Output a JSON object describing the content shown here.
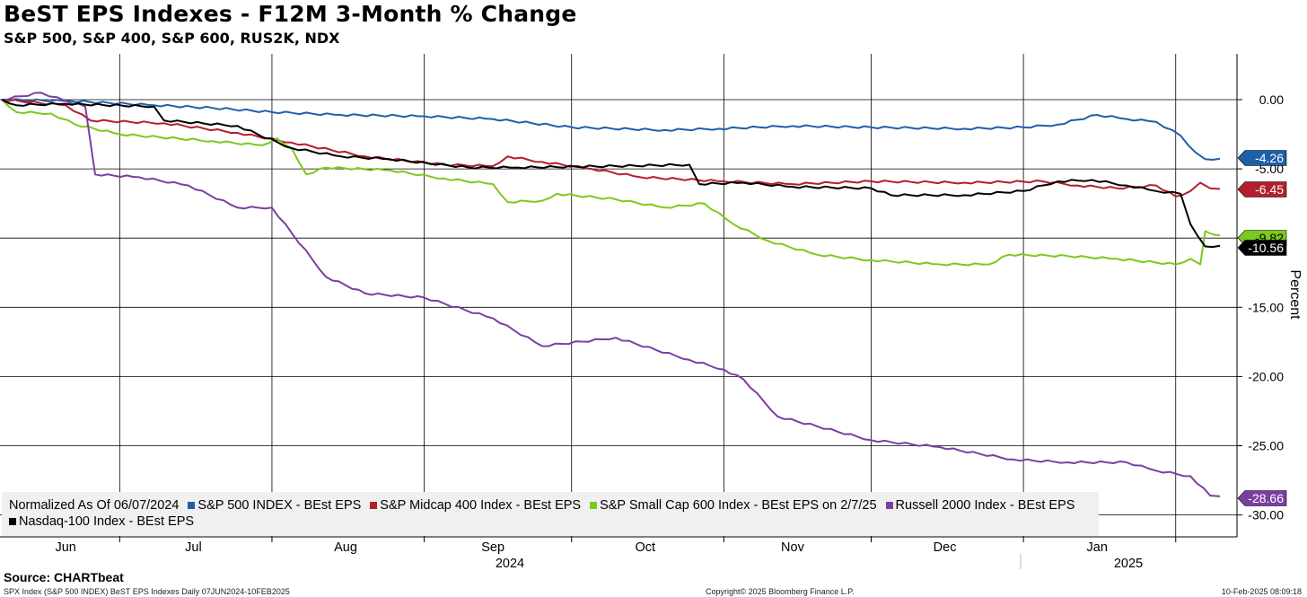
{
  "title": "BeST EPS Indexes - F12M 3-Month % Change",
  "subtitle": "S&P 500, S&P 400, S&P 600, RUS2K, NDX",
  "legend_prefix": "Normalized As Of 06/07/2024",
  "source": "Source: CHARTbeat",
  "footer": {
    "left": "SPX Index (S&P 500 INDEX) BeST EPS Indexes  Daily 07JUN2024-10FEB2025",
    "center": "Copyright© 2025 Bloomberg Finance L.P.",
    "right": "10-Feb-2025 08:09:18"
  },
  "chart_data": {
    "type": "line",
    "title": "BeST EPS Indexes - F12M 3-Month % Change",
    "subtitle": "S&P 500, S&P 400, S&P 600, RUS2K, NDX",
    "ylabel": "Percent",
    "ylim": [
      -30,
      2.5
    ],
    "yticks": [
      "0.00",
      "-5.00",
      "-10.00",
      "-15.00",
      "-20.00",
      "-25.00",
      "-30.00"
    ],
    "grid": true,
    "legend_position": "bottom-left",
    "x_months": [
      "Jun",
      "Jul",
      "Aug",
      "Sep",
      "Oct",
      "Nov",
      "Dec",
      "Jan"
    ],
    "x_years": [
      "2024",
      "2025"
    ],
    "date_range": [
      "2024-06-07",
      "2025-02-10"
    ],
    "series": [
      {
        "name": "S&P 500 INDEX - BEst EPS",
        "color": "#1f5fa8",
        "last_value": "-4.26",
        "points": [
          [
            "2024-06-07",
            0
          ],
          [
            "2024-06-21",
            -0.1
          ],
          [
            "2024-07-08",
            -0.4
          ],
          [
            "2024-07-20",
            -0.6
          ],
          [
            "2024-08-01",
            -0.9
          ],
          [
            "2024-08-15",
            -1.1
          ],
          [
            "2024-09-01",
            -1.2
          ],
          [
            "2024-09-15",
            -1.4
          ],
          [
            "2024-10-01",
            -2.0
          ],
          [
            "2024-10-20",
            -2.2
          ],
          [
            "2024-10-31",
            -2.1
          ],
          [
            "2024-11-15",
            -1.9
          ],
          [
            "2024-12-01",
            -2.0
          ],
          [
            "2024-12-20",
            -2.1
          ],
          [
            "2025-01-01",
            -2.0
          ],
          [
            "2025-01-08",
            -1.8
          ],
          [
            "2025-01-16",
            -1.1
          ],
          [
            "2025-01-22",
            -1.4
          ],
          [
            "2025-01-28",
            -1.6
          ],
          [
            "2025-02-02",
            -2.6
          ],
          [
            "2025-02-05",
            -3.8
          ],
          [
            "2025-02-07",
            -4.3
          ],
          [
            "2025-02-10",
            -4.26
          ]
        ]
      },
      {
        "name": "S&P Midcap 400 Index - BEst EPS",
        "color": "#b41f2e",
        "last_value": "-6.45",
        "points": [
          [
            "2024-06-07",
            0
          ],
          [
            "2024-06-20",
            -0.4
          ],
          [
            "2024-06-25",
            -1.5
          ],
          [
            "2024-07-10",
            -1.7
          ],
          [
            "2024-07-25",
            -2.4
          ],
          [
            "2024-08-05",
            -3.1
          ],
          [
            "2024-08-20",
            -4.1
          ],
          [
            "2024-09-05",
            -4.7
          ],
          [
            "2024-09-15",
            -4.8
          ],
          [
            "2024-09-18",
            -4.1
          ],
          [
            "2024-09-25",
            -4.5
          ],
          [
            "2024-10-05",
            -5.0
          ],
          [
            "2024-10-15",
            -5.6
          ],
          [
            "2024-11-01",
            -5.9
          ],
          [
            "2024-11-15",
            -6.1
          ],
          [
            "2024-12-01",
            -5.9
          ],
          [
            "2024-12-20",
            -6.0
          ],
          [
            "2025-01-05",
            -5.9
          ],
          [
            "2025-01-12",
            -6.2
          ],
          [
            "2025-01-20",
            -6.4
          ],
          [
            "2025-01-28",
            -6.2
          ],
          [
            "2025-02-01",
            -7.0
          ],
          [
            "2025-02-04",
            -6.6
          ],
          [
            "2025-02-06",
            -6.0
          ],
          [
            "2025-02-08",
            -6.4
          ],
          [
            "2025-02-10",
            -6.45
          ]
        ]
      },
      {
        "name": "S&P Small Cap 600 Index - BEst EPS on 2/7/25",
        "color": "#7bc91e",
        "last_value": "-9.82",
        "points": [
          [
            "2024-06-07",
            0
          ],
          [
            "2024-06-10",
            -0.9
          ],
          [
            "2024-06-17",
            -1.0
          ],
          [
            "2024-06-22",
            -1.8
          ],
          [
            "2024-07-01",
            -2.5
          ],
          [
            "2024-07-20",
            -3.0
          ],
          [
            "2024-07-30",
            -3.3
          ],
          [
            "2024-08-02",
            -2.8
          ],
          [
            "2024-08-05",
            -3.5
          ],
          [
            "2024-08-08",
            -5.4
          ],
          [
            "2024-08-12",
            -4.9
          ],
          [
            "2024-08-25",
            -5.1
          ],
          [
            "2024-09-05",
            -5.7
          ],
          [
            "2024-09-15",
            -6.1
          ],
          [
            "2024-09-18",
            -7.4
          ],
          [
            "2024-09-25",
            -7.3
          ],
          [
            "2024-09-28",
            -6.8
          ],
          [
            "2024-10-10",
            -7.2
          ],
          [
            "2024-10-20",
            -7.8
          ],
          [
            "2024-10-28",
            -7.5
          ],
          [
            "2024-11-03",
            -9.0
          ],
          [
            "2024-11-10",
            -10.2
          ],
          [
            "2024-11-20",
            -11.2
          ],
          [
            "2024-12-01",
            -11.6
          ],
          [
            "2024-12-15",
            -11.9
          ],
          [
            "2024-12-25",
            -11.9
          ],
          [
            "2024-12-29",
            -11.2
          ],
          [
            "2025-01-10",
            -11.3
          ],
          [
            "2025-01-20",
            -11.5
          ],
          [
            "2025-02-01",
            -11.9
          ],
          [
            "2025-02-04",
            -11.5
          ],
          [
            "2025-02-06",
            -11.9
          ],
          [
            "2025-02-07",
            -9.5
          ],
          [
            "2025-02-10",
            -9.82
          ]
        ]
      },
      {
        "name": "Russell 2000 Index - BEst EPS",
        "color": "#7b3fa0",
        "last_value": "-28.66",
        "points": [
          [
            "2024-06-07",
            0
          ],
          [
            "2024-06-15",
            0.5
          ],
          [
            "2024-06-20",
            -0.1
          ],
          [
            "2024-06-24",
            -0.5
          ],
          [
            "2024-06-26",
            -5.4
          ],
          [
            "2024-07-05",
            -5.6
          ],
          [
            "2024-07-15",
            -6.2
          ],
          [
            "2024-07-25",
            -7.8
          ],
          [
            "2024-08-01",
            -7.8
          ],
          [
            "2024-08-12",
            -12.8
          ],
          [
            "2024-08-20",
            -14.0
          ],
          [
            "2024-09-01",
            -14.3
          ],
          [
            "2024-09-15",
            -15.8
          ],
          [
            "2024-09-25",
            -17.8
          ],
          [
            "2024-10-10",
            -17.2
          ],
          [
            "2024-10-25",
            -18.8
          ],
          [
            "2024-11-01",
            -19.5
          ],
          [
            "2024-11-05",
            -20.2
          ],
          [
            "2024-11-12",
            -22.9
          ],
          [
            "2024-11-20",
            -23.6
          ],
          [
            "2024-12-01",
            -24.6
          ],
          [
            "2024-12-15",
            -25.1
          ],
          [
            "2024-12-30",
            -26.0
          ],
          [
            "2025-01-10",
            -26.2
          ],
          [
            "2025-01-22",
            -26.2
          ],
          [
            "2025-01-28",
            -26.8
          ],
          [
            "2025-02-04",
            -27.2
          ],
          [
            "2025-02-08",
            -28.6
          ],
          [
            "2025-02-10",
            -28.66
          ]
        ]
      },
      {
        "name": "Nasdaq-100 Index - BEst EPS",
        "color": "#000000",
        "last_value": "-10.56",
        "points": [
          [
            "2024-06-07",
            0
          ],
          [
            "2024-06-10",
            -0.4
          ],
          [
            "2024-06-20",
            -0.3
          ],
          [
            "2024-07-08",
            -0.5
          ],
          [
            "2024-07-10",
            -1.5
          ],
          [
            "2024-07-25",
            -1.9
          ],
          [
            "2024-08-05",
            -3.5
          ],
          [
            "2024-08-15",
            -4.1
          ],
          [
            "2024-08-25",
            -4.3
          ],
          [
            "2024-09-10",
            -4.9
          ],
          [
            "2024-09-20",
            -4.9
          ],
          [
            "2024-10-10",
            -4.8
          ],
          [
            "2024-10-25",
            -4.7
          ],
          [
            "2024-10-27",
            -6.1
          ],
          [
            "2024-11-05",
            -6.0
          ],
          [
            "2024-11-15",
            -6.3
          ],
          [
            "2024-12-01",
            -6.4
          ],
          [
            "2024-12-05",
            -6.9
          ],
          [
            "2024-12-20",
            -6.9
          ],
          [
            "2025-01-01",
            -6.6
          ],
          [
            "2025-01-08",
            -5.9
          ],
          [
            "2025-01-15",
            -5.8
          ],
          [
            "2025-01-22",
            -6.2
          ],
          [
            "2025-01-28",
            -6.6
          ],
          [
            "2025-02-02",
            -6.8
          ],
          [
            "2025-02-04",
            -9.0
          ],
          [
            "2025-02-07",
            -10.6
          ],
          [
            "2025-02-10",
            -10.56
          ]
        ]
      }
    ]
  }
}
